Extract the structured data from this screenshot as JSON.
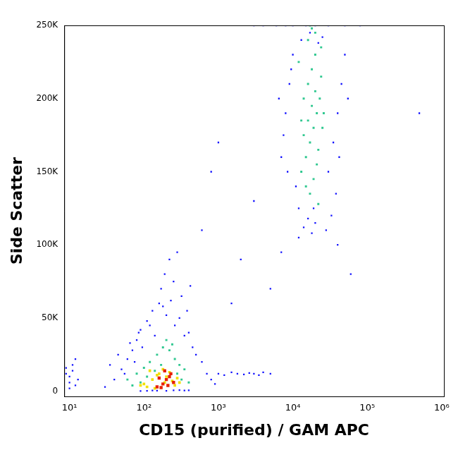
{
  "chart_data": {
    "type": "scatter",
    "x_label": "CD15 (purified) / GAM APC",
    "y_label": "Side Scatter",
    "log": "x",
    "grid": false,
    "marker": "square",
    "xlim": [
      8.5,
      1070000
    ],
    "xticks": [
      {
        "value": 10,
        "label": "10¹"
      },
      {
        "value": 100,
        "label": "10²"
      },
      {
        "value": 1000,
        "label": "10³"
      },
      {
        "value": 10000,
        "label": "10⁴"
      },
      {
        "value": 100000,
        "label": "10⁵"
      },
      {
        "value": 1000000,
        "label": "10⁶"
      }
    ],
    "ylim": [
      -3500,
      250000
    ],
    "yticks": [
      0,
      {
        "value": 50000,
        "label": "50K"
      },
      {
        "value": 100000,
        "label": "100K"
      },
      {
        "value": 150000,
        "label": "150K"
      },
      {
        "value": 200000,
        "label": "200K"
      },
      {
        "value": 250000,
        "label": "250K"
      }
    ],
    "series": [
      {
        "color": "#1010ff",
        "x": [
          30,
          40,
          50,
          60,
          70,
          80,
          90,
          110,
          130,
          160,
          180,
          200,
          230,
          260,
          300,
          350,
          400,
          450,
          500,
          600,
          700,
          800,
          900,
          35,
          45,
          55,
          65,
          75,
          85,
          95,
          120,
          140,
          170,
          190,
          220,
          250,
          280,
          320,
          380,
          420,
          10,
          10,
          10,
          11,
          11,
          12,
          12,
          13,
          9,
          9,
          1000,
          1200,
          1500,
          1800,
          2200,
          2600,
          3000,
          3500,
          4000,
          5000,
          1500,
          2000,
          3000,
          600,
          800,
          1000,
          5000,
          7000,
          40000,
          60000,
          7000,
          8000,
          9000,
          10000,
          11000,
          12000,
          6500,
          7500,
          8500,
          9500,
          30000,
          35000,
          40000,
          45000,
          50000,
          38000,
          42000,
          33000,
          28000,
          55000,
          3000,
          4000,
          6000,
          8000,
          10000,
          15000,
          20000,
          30000,
          50000,
          80000,
          12000,
          14000,
          16000,
          18000,
          20000,
          13000,
          17000,
          22000,
          25000,
          19000,
          500000,
          90,
          110,
          130,
          150,
          200,
          250,
          300,
          350,
          400
        ],
        "values": [
          3000,
          8000,
          15000,
          22000,
          28000,
          35000,
          42000,
          48000,
          55000,
          60000,
          58000,
          52000,
          62000,
          45000,
          50000,
          38000,
          40000,
          30000,
          25000,
          20000,
          12000,
          8000,
          5000,
          18000,
          25000,
          12000,
          33000,
          20000,
          40000,
          30000,
          45000,
          38000,
          70000,
          80000,
          90000,
          75000,
          95000,
          65000,
          55000,
          72000,
          2000,
          6000,
          10000,
          14000,
          18000,
          4000,
          22000,
          8000,
          12000,
          16000,
          12000,
          11000,
          13000,
          12000,
          11500,
          12500,
          12000,
          11000,
          13000,
          12000,
          60000,
          90000,
          130000,
          110000,
          150000,
          170000,
          70000,
          95000,
          100000,
          80000,
          160000,
          190000,
          210000,
          230000,
          140000,
          125000,
          200000,
          175000,
          150000,
          220000,
          150000,
          170000,
          190000,
          210000,
          230000,
          135000,
          160000,
          120000,
          110000,
          200000,
          250000,
          250000,
          250000,
          250000,
          250000,
          250000,
          250000,
          250000,
          250000,
          250000,
          105000,
          112000,
          118000,
          108000,
          115000,
          240000,
          245000,
          238000,
          242000,
          125000,
          190000,
          200,
          300,
          500,
          400,
          300,
          600,
          800,
          500,
          700
        ]
      },
      {
        "color": "#30c890",
        "x": [
          60,
          80,
          100,
          120,
          150,
          180,
          220,
          260,
          300,
          350,
          70,
          90,
          110,
          140,
          170,
          200,
          240,
          280,
          320,
          400,
          13000,
          15000,
          17000,
          19000,
          21000,
          23000,
          16000,
          18000,
          20000,
          22000,
          14000,
          16000,
          18000,
          20000,
          24000,
          15000,
          17000,
          19000,
          21000,
          25000,
          12000,
          20000,
          18000,
          16000,
          24000,
          22000,
          14000,
          26000,
          13000,
          17000
        ],
        "values": [
          8000,
          12000,
          16000,
          20000,
          25000,
          30000,
          28000,
          22000,
          18000,
          15000,
          4000,
          6000,
          10000,
          14000,
          18000,
          35000,
          32000,
          12000,
          8000,
          6000,
          150000,
          160000,
          170000,
          180000,
          190000,
          200000,
          210000,
          220000,
          230000,
          165000,
          175000,
          185000,
          195000,
          205000,
          215000,
          140000,
          135000,
          145000,
          155000,
          180000,
          225000,
          245000,
          248000,
          240000,
          235000,
          128000,
          200000,
          190000,
          185000,
          250000
        ]
      },
      {
        "color": "#f0e000",
        "x": [
          100,
          130,
          160,
          200,
          240,
          280,
          120,
          180,
          220,
          150,
          90,
          110,
          260,
          300,
          140,
          190
        ],
        "values": [
          5000,
          8000,
          12000,
          10000,
          7000,
          9000,
          14000,
          15000,
          13000,
          11000,
          4000,
          3000,
          4000,
          6000,
          2000,
          6000
        ]
      },
      {
        "color": "#e82000",
        "x": [
          150,
          180,
          200,
          220,
          250,
          170,
          210,
          230,
          190,
          160
        ],
        "values": [
          3000,
          5000,
          8000,
          10000,
          6000,
          2500,
          4000,
          12000,
          14000,
          9000
        ]
      }
    ]
  }
}
